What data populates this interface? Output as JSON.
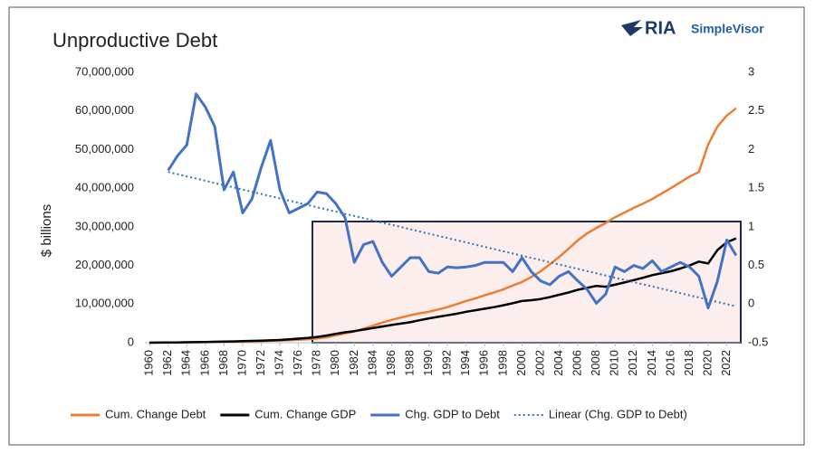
{
  "logo": {
    "mark": "RIA",
    "name": "SimpleVisor"
  },
  "chart_data": {
    "type": "line",
    "title": "Unproductive Debt",
    "ylabel": "$ billions",
    "x": [
      1960,
      1961,
      1962,
      1963,
      1964,
      1965,
      1966,
      1967,
      1968,
      1969,
      1970,
      1971,
      1972,
      1973,
      1974,
      1975,
      1976,
      1977,
      1978,
      1979,
      1980,
      1981,
      1982,
      1983,
      1984,
      1985,
      1986,
      1987,
      1988,
      1989,
      1990,
      1991,
      1992,
      1993,
      1994,
      1995,
      1996,
      1997,
      1998,
      1999,
      2000,
      2001,
      2002,
      2003,
      2004,
      2005,
      2006,
      2007,
      2008,
      2009,
      2010,
      2011,
      2012,
      2013,
      2014,
      2015,
      2016,
      2017,
      2018,
      2019,
      2020,
      2021,
      2022,
      2023
    ],
    "xlim": [
      1959.5,
      2023.5
    ],
    "xticks": [
      1960,
      1962,
      1964,
      1966,
      1968,
      1970,
      1972,
      1974,
      1976,
      1978,
      1980,
      1982,
      1984,
      1986,
      1988,
      1990,
      1992,
      1994,
      1996,
      1998,
      2000,
      2002,
      2004,
      2006,
      2008,
      2010,
      2012,
      2014,
      2016,
      2018,
      2020,
      2022
    ],
    "ylim": [
      0,
      70000000
    ],
    "yticks": [
      {
        "value": 0,
        "label": "0"
      },
      {
        "value": 10000000,
        "label": "10,000,000"
      },
      {
        "value": 20000000,
        "label": "20,000,000"
      },
      {
        "value": 30000000,
        "label": "30,000,000"
      },
      {
        "value": 40000000,
        "label": "40,000,000"
      },
      {
        "value": 50000000,
        "label": "50,000,000"
      },
      {
        "value": 60000000,
        "label": "60,000,000"
      },
      {
        "value": 70000000,
        "label": "70,000,000"
      }
    ],
    "y2lim": [
      -0.5,
      3
    ],
    "y2ticks": [
      -0.5,
      0,
      0.5,
      1,
      1.5,
      2,
      2.5,
      3
    ],
    "series": [
      {
        "name": "Cum. Change Debt",
        "color": "#ed7d31",
        "values": [
          0,
          20000,
          50000,
          80000,
          110000,
          140000,
          170000,
          200000,
          230000,
          260000,
          300000,
          350000,
          400000,
          480000,
          560000,
          650000,
          750000,
          900000,
          1100000,
          1400000,
          1900000,
          2400000,
          2900000,
          3600000,
          4400000,
          5200000,
          5900000,
          6500000,
          7100000,
          7600000,
          8000000,
          8600000,
          9200000,
          10000000,
          10800000,
          11500000,
          12300000,
          13000000,
          13800000,
          14800000,
          15700000,
          17000000,
          18500000,
          20300000,
          22200000,
          24300000,
          26500000,
          28300000,
          29700000,
          31000000,
          32500000,
          33700000,
          34900000,
          36000000,
          37200000,
          38600000,
          40000000,
          41500000,
          43000000,
          44200000,
          51300000,
          56000000,
          58800000,
          60700000
        ]
      },
      {
        "name": "Cum. Change GDP",
        "color": "#000000",
        "values": [
          0,
          20000,
          50000,
          80000,
          110000,
          150000,
          190000,
          230000,
          270000,
          320000,
          400000,
          460000,
          540000,
          620000,
          700000,
          900000,
          1050000,
          1250000,
          1500000,
          1850000,
          2300000,
          2700000,
          3000000,
          3400000,
          3800000,
          4200000,
          4600000,
          4950000,
          5300000,
          5800000,
          6300000,
          6700000,
          7100000,
          7500000,
          8000000,
          8400000,
          8800000,
          9200000,
          9700000,
          10200000,
          10800000,
          11000000,
          11300000,
          11800000,
          12400000,
          13000000,
          13700000,
          14200000,
          14700000,
          14500000,
          15000000,
          15600000,
          16200000,
          16800000,
          17500000,
          18000000,
          18500000,
          19200000,
          20000000,
          21000000,
          20500000,
          24000000,
          26000000,
          27000000
        ]
      },
      {
        "name": "Chg. GDP to Debt",
        "color": "#4472c4",
        "axis": "y2",
        "values": [
          null,
          null,
          1.73,
          1.92,
          2.06,
          2.72,
          2.55,
          2.3,
          1.48,
          1.71,
          1.18,
          1.36,
          1.77,
          2.12,
          1.48,
          1.18,
          1.24,
          1.3,
          1.45,
          1.43,
          1.3,
          1.12,
          0.54,
          0.77,
          0.81,
          0.54,
          0.36,
          0.48,
          0.6,
          0.6,
          0.42,
          0.4,
          0.48,
          0.47,
          0.48,
          0.5,
          0.54,
          0.54,
          0.54,
          0.42,
          0.6,
          0.42,
          0.3,
          0.25,
          0.36,
          0.42,
          0.3,
          0.19,
          0.01,
          0.13,
          0.48,
          0.42,
          0.5,
          0.46,
          0.56,
          0.42,
          0.48,
          0.54,
          0.48,
          0.36,
          -0.05,
          0.3,
          0.83,
          0.63
        ]
      },
      {
        "name": "Linear (Chg. GDP to Debt)",
        "color": "#2e75b6",
        "axis": "y2",
        "dashed": true,
        "x": [
          1962,
          2023
        ],
        "values": [
          1.71,
          -0.03
        ]
      }
    ]
  }
}
